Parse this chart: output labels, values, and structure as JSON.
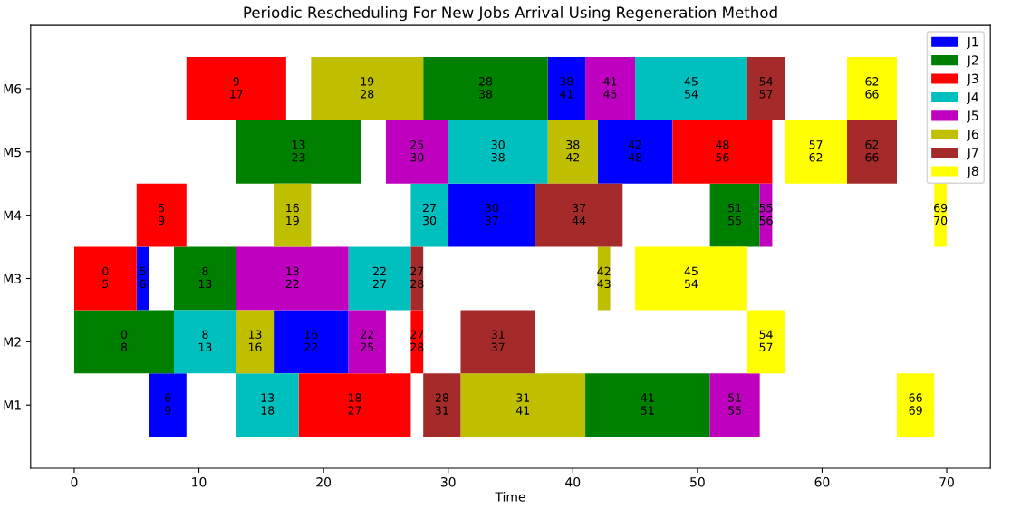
{
  "chart_data": {
    "type": "bar",
    "orientation": "horizontal",
    "title": "Periodic Rescheduling For New Jobs Arrival Using Regeneration Method",
    "xlabel": "Time",
    "categories": [
      "M6",
      "M5",
      "M4",
      "M3",
      "M2",
      "M1"
    ],
    "xlim": [
      -3.5,
      73.5
    ],
    "xticks": [
      0,
      10,
      20,
      30,
      40,
      50,
      60,
      70
    ],
    "grid": false,
    "legend": "top right",
    "series": [
      {
        "name": "J1",
        "color": "#0000ff",
        "base": [
          38,
          42,
          30,
          5,
          16,
          6
        ],
        "values": [
          3,
          6,
          7,
          1,
          6,
          3
        ]
      },
      {
        "name": "J2",
        "color": "#008000",
        "base": [
          28,
          13,
          51,
          8,
          0,
          41
        ],
        "values": [
          10,
          10,
          4,
          5,
          8,
          10
        ]
      },
      {
        "name": "J3",
        "color": "#ff0000",
        "base": [
          9,
          48,
          5,
          0,
          27,
          18
        ],
        "values": [
          8,
          8,
          4,
          5,
          1,
          9
        ]
      },
      {
        "name": "J4",
        "color": "#00bfbf",
        "base": [
          45,
          30,
          27,
          22,
          8,
          13
        ],
        "values": [
          9,
          8,
          3,
          5,
          5,
          5
        ]
      },
      {
        "name": "J5",
        "color": "#bf00bf",
        "base": [
          41,
          25,
          55,
          13,
          22,
          51
        ],
        "values": [
          4,
          5,
          1,
          9,
          3,
          4
        ]
      },
      {
        "name": "J6",
        "color": "#bfbf00",
        "base": [
          19,
          38,
          16,
          42,
          13,
          31
        ],
        "values": [
          9,
          4,
          3,
          1,
          3,
          10
        ]
      },
      {
        "name": "J7",
        "color": "#a52a2a",
        "base": [
          54,
          62,
          37,
          27,
          31,
          28
        ],
        "values": [
          3,
          4,
          7,
          1,
          6,
          3
        ]
      },
      {
        "name": "J8",
        "color": "#ffff00",
        "base": [
          62,
          57,
          69,
          45,
          54,
          66
        ],
        "values": [
          4,
          5,
          1,
          9,
          3,
          3
        ]
      }
    ],
    "annotations": [
      "38\n41",
      "42\n48",
      "30\n37",
      "5\n6",
      "16\n22",
      "6\n9",
      "28\n38",
      "13\n23",
      "51\n55",
      "8\n13",
      "0\n8",
      "41\n51",
      "9\n17",
      "48\n56",
      "5\n9",
      "0\n5",
      "27\n28",
      "18\n27",
      "45\n54",
      "30\n38",
      "27\n30",
      "22\n27",
      "8\n13",
      "13\n18",
      "41\n45",
      "25\n30",
      "55\n56",
      "13\n22",
      "22\n25",
      "51\n55",
      "19\n28",
      "38\n42",
      "16\n19",
      "42\n43",
      "13\n16",
      "31\n41",
      "54\n57",
      "62\n66",
      "37\n44",
      "27\n28",
      "31\n37",
      "28\n31",
      "62\n66",
      "57\n62",
      "69\n70",
      "45\n54",
      "54\n57",
      "66\n69"
    ]
  }
}
